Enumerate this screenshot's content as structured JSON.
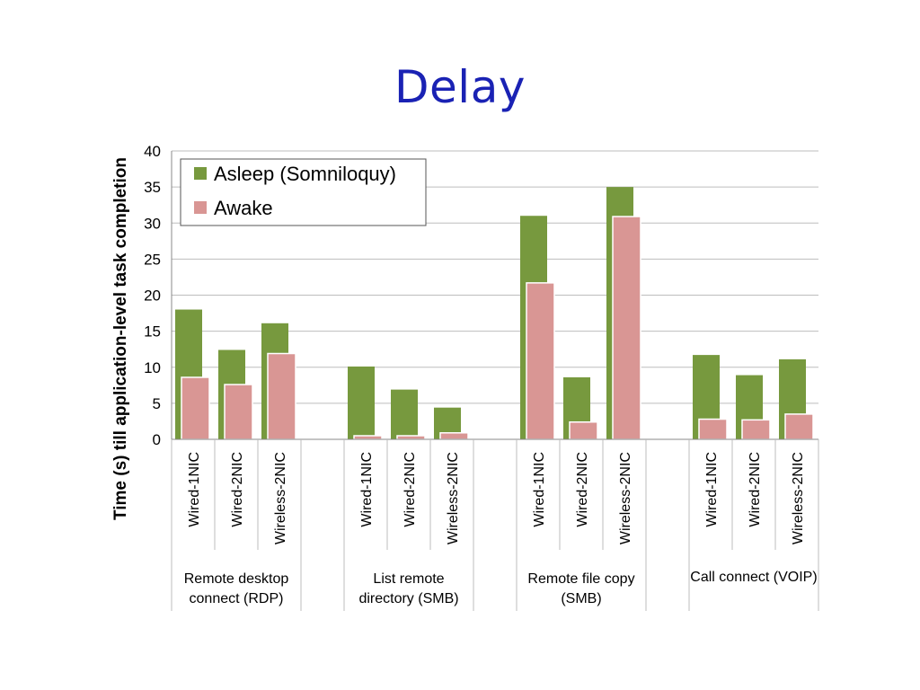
{
  "slide_title": "Delay",
  "chart_data": {
    "type": "bar",
    "ylabel": "Time (s) till application-level task completion",
    "ylim": [
      0,
      40
    ],
    "yticks": [
      0,
      5,
      10,
      15,
      20,
      25,
      30,
      35,
      40
    ],
    "grid": true,
    "legend_position": "top-left",
    "groups": [
      {
        "label": "Remote desktop connect (RDP)",
        "label_lines": [
          "Remote desktop",
          "connect (RDP)"
        ]
      },
      {
        "label": "List remote directory (SMB)",
        "label_lines": [
          "List remote",
          "directory (SMB)"
        ]
      },
      {
        "label": "Remote file copy (SMB)",
        "label_lines": [
          "Remote file copy",
          "(SMB)"
        ]
      },
      {
        "label": "Call connect (VOIP)",
        "label_lines": [
          "Call connect (VOIP)"
        ]
      }
    ],
    "subcategories": [
      "Wired-1NIC",
      "Wired-2NIC",
      "Wireless-2NIC"
    ],
    "series": [
      {
        "name": "Asleep (Somniloquy)",
        "color": "#77993e",
        "values": [
          18,
          12.4,
          16.1,
          10.1,
          6.9,
          4.4,
          31,
          8.6,
          35,
          11.7,
          8.9,
          11.1
        ]
      },
      {
        "name": "Awake",
        "color": "#d99694",
        "values": [
          8.6,
          7.6,
          11.9,
          0.5,
          0.5,
          0.9,
          21.7,
          2.4,
          30.9,
          2.8,
          2.7,
          3.5
        ]
      }
    ]
  }
}
